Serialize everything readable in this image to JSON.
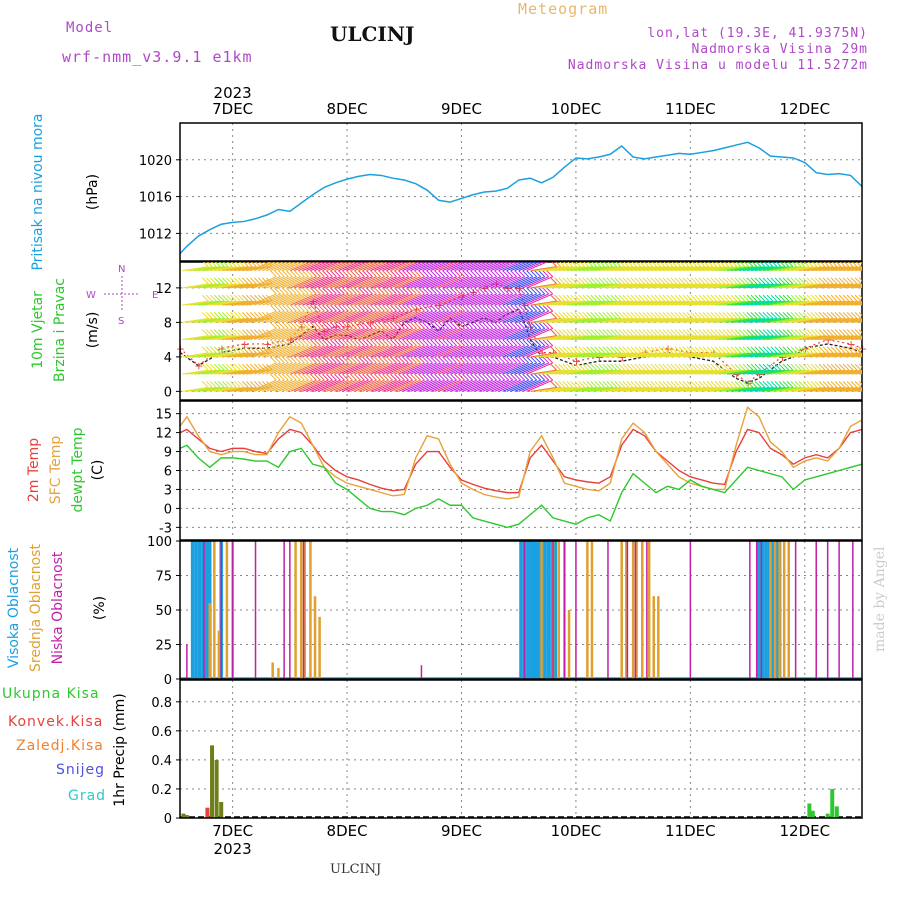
{
  "header": {
    "model_label": "Model",
    "model_name": "wrf-nmm_v3.9.1 e1km",
    "station": "ULCINJ",
    "product": "Meteogram",
    "location_lines": [
      "lon,lat (19.3E, 41.9375N)",
      "Nadmorska Visina 29m",
      "Nadmorska Visina u modelu 11.5272m"
    ]
  },
  "footer": {
    "station": "ULCINJ",
    "credit": "made by Angel"
  },
  "colors": {
    "pressure": "#1aa0e0",
    "temp2m": "#e8403c",
    "sfc_temp": "#e8a23a",
    "dewpt": "#2ec82e",
    "cloud_high": "#1aa0e0",
    "cloud_mid": "#e0a030",
    "cloud_low": "#c020a8",
    "precip_total": "#2ec82e",
    "precip_conv": "#e8403c",
    "precip_strat": "#f08030",
    "snow": "#5050e0",
    "grad": "#30c8c8"
  },
  "chart_data": [
    {
      "type": "line",
      "ylabels": [
        "Pritisak na nivou mora",
        "(hPa)"
      ],
      "x_top_labels": [
        "7DEC",
        "8DEC",
        "9DEC",
        "10DEC",
        "11DEC",
        "12DEC"
      ],
      "x_top_year": "2023",
      "xlim": [
        6.54,
        12.5
      ],
      "ylim": [
        1009,
        1024
      ],
      "yticks": [
        1012,
        1016,
        1020
      ],
      "series": [
        {
          "x": [
            6.54,
            6.6,
            6.7,
            6.8,
            6.9,
            7.0,
            7.1,
            7.2,
            7.3,
            7.4,
            7.5,
            7.6,
            7.7,
            7.8,
            7.9,
            8.0,
            8.1,
            8.2,
            8.3,
            8.4,
            8.5,
            8.6,
            8.7,
            8.8,
            8.9,
            9.0,
            9.1,
            9.2,
            9.3,
            9.4,
            9.5,
            9.6,
            9.7,
            9.8,
            9.9,
            10.0,
            10.1,
            10.2,
            10.3,
            10.4,
            10.5,
            10.6,
            10.7,
            10.8,
            10.9,
            11.0,
            11.1,
            11.2,
            11.3,
            11.4,
            11.5,
            11.6,
            11.7,
            11.8,
            11.9,
            12.0,
            12.1,
            12.2,
            12.3,
            12.4,
            12.5
          ],
          "values": [
            1009.8,
            1010.6,
            1011.7,
            1012.4,
            1013.0,
            1013.2,
            1013.3,
            1013.6,
            1014.0,
            1014.6,
            1014.4,
            1015.3,
            1016.2,
            1017.0,
            1017.5,
            1017.9,
            1018.2,
            1018.4,
            1018.3,
            1018.0,
            1017.8,
            1017.4,
            1016.7,
            1015.6,
            1015.4,
            1015.8,
            1016.2,
            1016.5,
            1016.6,
            1016.9,
            1017.8,
            1018.0,
            1017.5,
            1018.1,
            1019.2,
            1020.2,
            1020.1,
            1020.3,
            1020.6,
            1021.5,
            1020.3,
            1020.1,
            1020.3,
            1020.5,
            1020.7,
            1020.6,
            1020.8,
            1021.0,
            1021.3,
            1021.6,
            1021.9,
            1021.3,
            1020.4,
            1020.3,
            1020.2,
            1019.7,
            1018.6,
            1018.4,
            1018.5,
            1018.3,
            1017.1
          ]
        }
      ]
    },
    {
      "type": "scatter",
      "ylabels": [
        "10m Vjetar",
        "Brzina i Pravac",
        "(m/s)"
      ],
      "compass": [
        "N",
        "W",
        "E",
        "S"
      ],
      "xlim": [
        6.54,
        12.5
      ],
      "ylim": [
        -1,
        15
      ],
      "yticks": [
        0,
        4,
        8,
        12
      ],
      "series": [
        {
          "name": "wind speed",
          "x": [
            6.54,
            6.7,
            6.9,
            7.1,
            7.3,
            7.5,
            7.6,
            7.7,
            7.8,
            7.9,
            8.0,
            8.1,
            8.2,
            8.3,
            8.4,
            8.5,
            8.6,
            8.7,
            8.8,
            8.9,
            9.0,
            9.1,
            9.2,
            9.3,
            9.4,
            9.5,
            9.55,
            9.6,
            9.7,
            9.8,
            9.9,
            10.0,
            10.2,
            10.4,
            10.6,
            10.8,
            11.0,
            11.2,
            11.3,
            11.4,
            11.5,
            11.6,
            11.7,
            11.8,
            11.9,
            12.0,
            12.2,
            12.4,
            12.5
          ],
          "values": [
            4.5,
            3.0,
            4.5,
            5.0,
            5.0,
            5.5,
            6.5,
            7.5,
            6.0,
            6.5,
            6.5,
            6.0,
            6.5,
            7.0,
            6.0,
            8.0,
            8.5,
            8.0,
            7.0,
            8.5,
            7.5,
            8.0,
            8.5,
            8.0,
            9.0,
            9.5,
            8.0,
            6.0,
            4.0,
            4.0,
            3.5,
            3.0,
            3.5,
            3.5,
            4.0,
            4.5,
            4.0,
            3.5,
            2.5,
            1.5,
            1.0,
            1.5,
            2.5,
            3.5,
            4.0,
            5.0,
            5.5,
            5.0,
            4.5
          ]
        },
        {
          "name": "wind gust",
          "x": [
            6.54,
            6.7,
            6.9,
            7.1,
            7.3,
            7.5,
            7.6,
            7.7,
            7.8,
            7.9,
            8.0,
            8.2,
            8.4,
            8.6,
            8.8,
            9.0,
            9.1,
            9.2,
            9.3,
            9.4,
            9.5,
            9.55,
            9.6,
            9.7,
            9.8,
            10.0,
            10.2,
            10.4,
            10.6,
            10.8,
            11.0,
            11.2,
            11.4,
            11.5,
            11.6,
            11.8,
            12.0,
            12.2,
            12.4,
            12.5
          ],
          "values": [
            5.0,
            3.0,
            5.0,
            5.5,
            5.5,
            6.0,
            7.5,
            10.5,
            7.0,
            7.5,
            7.5,
            8.0,
            8.5,
            9.5,
            10.0,
            11.0,
            11.5,
            12.0,
            12.5,
            12.0,
            12.0,
            10.0,
            7.5,
            4.5,
            4.5,
            3.5,
            4.0,
            4.0,
            4.5,
            5.0,
            4.5,
            4.5,
            2.0,
            1.0,
            2.0,
            4.0,
            5.0,
            6.0,
            5.5,
            5.0
          ]
        }
      ]
    },
    {
      "type": "line",
      "ylabels": [
        "2m Temp",
        "SFC Temp",
        "dewpt Temp",
        "(C)"
      ],
      "xlim": [
        6.54,
        12.5
      ],
      "ylim": [
        -5,
        17
      ],
      "yticks": [
        -3,
        0,
        3,
        6,
        9,
        12,
        15
      ],
      "series": [
        {
          "name": "2m Temp",
          "x": [
            6.54,
            6.6,
            6.7,
            6.8,
            6.9,
            7.0,
            7.1,
            7.2,
            7.3,
            7.4,
            7.5,
            7.6,
            7.7,
            7.8,
            7.9,
            8.0,
            8.1,
            8.2,
            8.3,
            8.4,
            8.5,
            8.6,
            8.7,
            8.8,
            8.9,
            9.0,
            9.1,
            9.2,
            9.3,
            9.4,
            9.5,
            9.6,
            9.7,
            9.8,
            9.9,
            10.0,
            10.1,
            10.2,
            10.3,
            10.4,
            10.5,
            10.6,
            10.7,
            10.8,
            10.9,
            11.0,
            11.1,
            11.2,
            11.3,
            11.4,
            11.5,
            11.6,
            11.7,
            11.8,
            11.9,
            12.0,
            12.1,
            12.2,
            12.3,
            12.4,
            12.5
          ],
          "values": [
            12.0,
            12.5,
            11.0,
            9.5,
            9.0,
            9.5,
            9.5,
            9.0,
            8.7,
            11.0,
            12.5,
            12.0,
            10.0,
            7.5,
            6.0,
            5.0,
            4.5,
            3.8,
            3.2,
            2.8,
            3.0,
            7.0,
            9.0,
            9.0,
            6.5,
            4.5,
            3.8,
            3.2,
            2.8,
            2.5,
            2.5,
            8.0,
            10.0,
            7.5,
            5.0,
            4.5,
            4.2,
            4.0,
            5.0,
            10.0,
            12.5,
            11.5,
            9.0,
            7.5,
            6.0,
            5.0,
            4.5,
            4.0,
            3.8,
            9.0,
            12.5,
            12.0,
            9.5,
            8.5,
            7.0,
            8.0,
            8.5,
            8.0,
            9.5,
            12.0,
            12.5
          ]
        },
        {
          "name": "SFC Temp",
          "x": [
            6.54,
            6.6,
            6.7,
            6.8,
            6.9,
            7.0,
            7.1,
            7.2,
            7.3,
            7.4,
            7.5,
            7.6,
            7.7,
            7.8,
            7.9,
            8.0,
            8.1,
            8.2,
            8.3,
            8.4,
            8.5,
            8.6,
            8.7,
            8.8,
            8.9,
            9.0,
            9.1,
            9.2,
            9.3,
            9.4,
            9.5,
            9.6,
            9.7,
            9.8,
            9.9,
            10.0,
            10.1,
            10.2,
            10.3,
            10.4,
            10.5,
            10.6,
            10.7,
            10.8,
            10.9,
            11.0,
            11.1,
            11.2,
            11.3,
            11.4,
            11.5,
            11.6,
            11.7,
            11.8,
            11.9,
            12.0,
            12.1,
            12.2,
            12.3,
            12.4,
            12.5
          ],
          "values": [
            13.0,
            14.5,
            11.5,
            9.0,
            8.5,
            9.0,
            9.0,
            8.5,
            8.5,
            12.0,
            14.5,
            13.5,
            10.0,
            6.5,
            5.0,
            4.0,
            3.5,
            3.0,
            2.5,
            2.0,
            2.2,
            8.0,
            11.5,
            11.0,
            7.0,
            4.0,
            3.0,
            2.2,
            1.8,
            1.5,
            1.8,
            9.0,
            11.5,
            8.0,
            4.0,
            3.5,
            3.0,
            2.8,
            4.0,
            11.0,
            13.5,
            12.0,
            9.0,
            7.0,
            5.0,
            4.0,
            3.5,
            3.0,
            3.0,
            10.0,
            16.0,
            14.5,
            10.5,
            9.0,
            6.5,
            7.5,
            8.0,
            7.5,
            9.5,
            13.0,
            14.0
          ]
        },
        {
          "name": "dewpt Temp",
          "x": [
            6.54,
            6.6,
            6.7,
            6.8,
            6.9,
            7.0,
            7.1,
            7.2,
            7.3,
            7.4,
            7.5,
            7.6,
            7.7,
            7.8,
            7.9,
            8.0,
            8.1,
            8.2,
            8.3,
            8.4,
            8.5,
            8.6,
            8.7,
            8.8,
            8.9,
            9.0,
            9.1,
            9.2,
            9.3,
            9.4,
            9.5,
            9.6,
            9.7,
            9.8,
            9.9,
            10.0,
            10.1,
            10.2,
            10.3,
            10.4,
            10.5,
            10.6,
            10.7,
            10.8,
            10.9,
            11.0,
            11.1,
            11.2,
            11.3,
            11.4,
            11.5,
            11.6,
            11.7,
            11.8,
            11.9,
            12.0,
            12.1,
            12.2,
            12.3,
            12.4,
            12.5
          ],
          "values": [
            9.5,
            10.0,
            8.0,
            6.5,
            8.0,
            8.0,
            7.8,
            7.5,
            7.5,
            6.5,
            9.0,
            9.5,
            7.0,
            6.5,
            4.0,
            3.0,
            1.5,
            0.0,
            -0.5,
            -0.5,
            -1.0,
            0.0,
            0.5,
            1.5,
            0.5,
            0.5,
            -1.5,
            -2.0,
            -2.5,
            -3.0,
            -2.5,
            -1.0,
            0.5,
            -1.5,
            -2.0,
            -2.5,
            -1.5,
            -1.0,
            -2.0,
            2.5,
            5.5,
            4.0,
            2.5,
            3.5,
            3.0,
            4.5,
            3.5,
            3.0,
            2.5,
            4.5,
            6.5,
            6.0,
            5.5,
            5.0,
            3.0,
            4.5,
            5.0,
            5.5,
            6.0,
            6.5,
            7.0
          ]
        }
      ]
    },
    {
      "type": "bar",
      "ylabels": [
        "Visoka Oblacnost",
        "Srednja Oblacnost",
        "Niska Oblacnost",
        "(%)"
      ],
      "xlim": [
        6.54,
        12.5
      ],
      "ylim": [
        0,
        100
      ],
      "yticks": [
        0,
        25,
        50,
        75,
        100
      ],
      "series": [
        {
          "name": "Visoka Oblacnost",
          "x": [
            6.65,
            6.68,
            6.71,
            6.74,
            6.77,
            6.8,
            6.9,
            9.52,
            9.55,
            9.58,
            9.61,
            9.64,
            9.67,
            9.7,
            9.73,
            9.76,
            9.79,
            9.82,
            11.6,
            11.63,
            11.66,
            11.69,
            11.72,
            11.75,
            11.78
          ],
          "values": [
            100,
            100,
            100,
            100,
            100,
            100,
            100,
            100,
            100,
            100,
            100,
            100,
            100,
            100,
            100,
            100,
            100,
            100,
            100,
            100,
            100,
            100,
            100,
            100,
            100
          ]
        },
        {
          "name": "Srednja Oblacnost",
          "x": [
            6.8,
            6.84,
            6.88,
            6.95,
            7.0,
            7.35,
            7.4,
            7.55,
            7.6,
            7.63,
            7.68,
            7.72,
            7.76,
            9.7,
            9.8,
            9.85,
            9.9,
            9.94,
            10.1,
            10.14,
            10.4,
            10.44,
            10.5,
            10.53,
            10.58,
            10.64,
            10.68,
            10.72,
            11.7,
            11.74,
            11.78,
            11.82,
            11.86
          ],
          "values": [
            55,
            100,
            35,
            100,
            100,
            12,
            8,
            100,
            100,
            100,
            100,
            60,
            45,
            100,
            100,
            100,
            100,
            50,
            100,
            100,
            100,
            100,
            100,
            100,
            100,
            100,
            60,
            60,
            100,
            100,
            100,
            100,
            100
          ]
        },
        {
          "name": "Niska Oblacnost",
          "x": [
            6.6,
            6.75,
            6.9,
            7.0,
            7.2,
            7.45,
            7.5,
            7.62,
            8.65,
            9.55,
            9.8,
            9.9,
            10.0,
            10.28,
            10.45,
            10.52,
            10.62,
            11.0,
            11.52,
            11.58,
            11.62,
            11.92,
            12.1,
            12.2,
            12.3,
            12.42
          ],
          "values": [
            25,
            100,
            100,
            100,
            100,
            100,
            100,
            100,
            10,
            100,
            100,
            100,
            100,
            100,
            100,
            100,
            100,
            100,
            100,
            100,
            100,
            100,
            100,
            100,
            100,
            100
          ]
        }
      ]
    },
    {
      "type": "bar",
      "ylabels": [
        "Ukupna Kisa",
        "Konvek.Kisa",
        "Zaledj.Kisa",
        "Snijeg",
        "Grad",
        "1hr Precip (mm)"
      ],
      "x_bottom_labels": [
        "7DEC",
        "8DEC",
        "9DEC",
        "10DEC",
        "11DEC",
        "12DEC"
      ],
      "x_bottom_year": "2023",
      "xlim": [
        6.54,
        12.5
      ],
      "ylim": [
        0,
        0.95
      ],
      "yticks": [
        0,
        0.2,
        0.4,
        0.6,
        0.8
      ],
      "series": [
        {
          "name": "Ukupna Kisa",
          "x": [
            6.57,
            6.6,
            6.78,
            6.82,
            6.86,
            6.9,
            12.04,
            12.07,
            12.2,
            12.24,
            12.28
          ],
          "values": [
            0.03,
            0.02,
            0.07,
            0.5,
            0.4,
            0.11,
            0.1,
            0.05,
            0.03,
            0.2,
            0.08
          ]
        },
        {
          "name": "Konvek.Kisa",
          "x": [
            6.78
          ],
          "values": [
            0.07
          ]
        }
      ]
    }
  ]
}
